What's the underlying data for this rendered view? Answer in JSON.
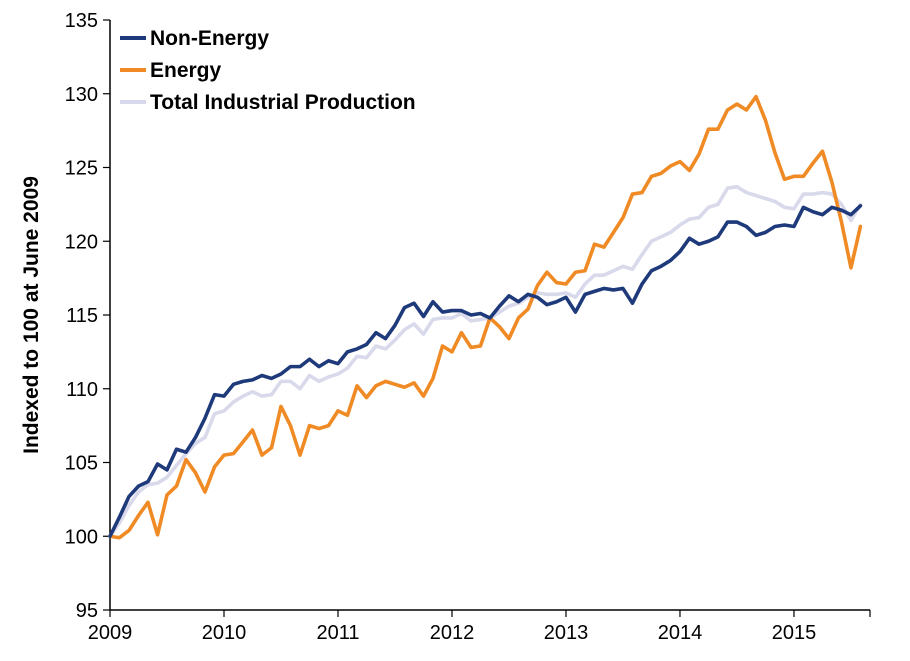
{
  "chart_data": {
    "type": "line",
    "title": "",
    "xlabel": "",
    "ylabel": "Indexed to 100 at June 2009",
    "ylim": [
      95,
      135
    ],
    "yticks": [
      95,
      100,
      105,
      110,
      115,
      120,
      125,
      130,
      135
    ],
    "xlim": [
      2009.0,
      2015.667
    ],
    "xticks": [
      "2009",
      "2010",
      "2011",
      "2012",
      "2013",
      "2014",
      "2015"
    ],
    "grid": false,
    "legend_position": "top-left",
    "series": [
      {
        "name": "Non-Energy",
        "color": "#1f3a7a",
        "points": [
          [
            2009.0,
            100.0
          ],
          [
            2009.083,
            101.3
          ],
          [
            2009.167,
            102.7
          ],
          [
            2009.25,
            103.4
          ],
          [
            2009.333,
            103.7
          ],
          [
            2009.417,
            104.9
          ],
          [
            2009.5,
            104.5
          ],
          [
            2009.583,
            105.9
          ],
          [
            2009.667,
            105.7
          ],
          [
            2009.75,
            106.7
          ],
          [
            2009.833,
            108.0
          ],
          [
            2009.917,
            109.6
          ],
          [
            2010.0,
            109.5
          ],
          [
            2010.083,
            110.3
          ],
          [
            2010.167,
            110.5
          ],
          [
            2010.25,
            110.6
          ],
          [
            2010.333,
            110.9
          ],
          [
            2010.417,
            110.7
          ],
          [
            2010.5,
            111.0
          ],
          [
            2010.583,
            111.5
          ],
          [
            2010.667,
            111.5
          ],
          [
            2010.75,
            112.0
          ],
          [
            2010.833,
            111.5
          ],
          [
            2010.917,
            111.9
          ],
          [
            2011.0,
            111.7
          ],
          [
            2011.083,
            112.5
          ],
          [
            2011.167,
            112.7
          ],
          [
            2011.25,
            113.0
          ],
          [
            2011.333,
            113.8
          ],
          [
            2011.417,
            113.4
          ],
          [
            2011.5,
            114.3
          ],
          [
            2011.583,
            115.5
          ],
          [
            2011.667,
            115.8
          ],
          [
            2011.75,
            114.9
          ],
          [
            2011.833,
            115.9
          ],
          [
            2011.917,
            115.2
          ],
          [
            2012.0,
            115.3
          ],
          [
            2012.083,
            115.3
          ],
          [
            2012.167,
            115.0
          ],
          [
            2012.25,
            115.1
          ],
          [
            2012.333,
            114.8
          ],
          [
            2012.417,
            115.6
          ],
          [
            2012.5,
            116.3
          ],
          [
            2012.583,
            115.9
          ],
          [
            2012.667,
            116.4
          ],
          [
            2012.75,
            116.2
          ],
          [
            2012.833,
            115.7
          ],
          [
            2012.917,
            115.9
          ],
          [
            2013.0,
            116.2
          ],
          [
            2013.083,
            115.2
          ],
          [
            2013.167,
            116.4
          ],
          [
            2013.25,
            116.6
          ],
          [
            2013.333,
            116.8
          ],
          [
            2013.417,
            116.7
          ],
          [
            2013.5,
            116.8
          ],
          [
            2013.583,
            115.8
          ],
          [
            2013.667,
            117.1
          ],
          [
            2013.75,
            118.0
          ],
          [
            2013.833,
            118.3
          ],
          [
            2013.917,
            118.7
          ],
          [
            2014.0,
            119.3
          ],
          [
            2014.083,
            120.2
          ],
          [
            2014.167,
            119.8
          ],
          [
            2014.25,
            120.0
          ],
          [
            2014.333,
            120.3
          ],
          [
            2014.417,
            121.3
          ],
          [
            2014.5,
            121.3
          ],
          [
            2014.583,
            121.0
          ],
          [
            2014.667,
            120.4
          ],
          [
            2014.75,
            120.6
          ],
          [
            2014.833,
            121.0
          ],
          [
            2014.917,
            121.1
          ],
          [
            2015.0,
            121.0
          ],
          [
            2015.083,
            122.3
          ],
          [
            2015.167,
            122.0
          ],
          [
            2015.25,
            121.8
          ],
          [
            2015.333,
            122.3
          ],
          [
            2015.417,
            122.1
          ],
          [
            2015.5,
            121.8
          ],
          [
            2015.583,
            122.4
          ]
        ]
      },
      {
        "name": "Energy",
        "color": "#f08a24",
        "points": [
          [
            2009.0,
            100.0
          ],
          [
            2009.083,
            99.9
          ],
          [
            2009.167,
            100.4
          ],
          [
            2009.25,
            101.4
          ],
          [
            2009.333,
            102.3
          ],
          [
            2009.417,
            100.1
          ],
          [
            2009.5,
            102.8
          ],
          [
            2009.583,
            103.4
          ],
          [
            2009.667,
            105.2
          ],
          [
            2009.75,
            104.3
          ],
          [
            2009.833,
            103.0
          ],
          [
            2009.917,
            104.7
          ],
          [
            2010.0,
            105.5
          ],
          [
            2010.083,
            105.6
          ],
          [
            2010.167,
            106.4
          ],
          [
            2010.25,
            107.2
          ],
          [
            2010.333,
            105.5
          ],
          [
            2010.417,
            106.0
          ],
          [
            2010.5,
            108.8
          ],
          [
            2010.583,
            107.5
          ],
          [
            2010.667,
            105.5
          ],
          [
            2010.75,
            107.5
          ],
          [
            2010.833,
            107.3
          ],
          [
            2010.917,
            107.5
          ],
          [
            2011.0,
            108.5
          ],
          [
            2011.083,
            108.2
          ],
          [
            2011.167,
            110.2
          ],
          [
            2011.25,
            109.4
          ],
          [
            2011.333,
            110.2
          ],
          [
            2011.417,
            110.5
          ],
          [
            2011.5,
            110.3
          ],
          [
            2011.583,
            110.1
          ],
          [
            2011.667,
            110.4
          ],
          [
            2011.75,
            109.5
          ],
          [
            2011.833,
            110.7
          ],
          [
            2011.917,
            112.9
          ],
          [
            2012.0,
            112.5
          ],
          [
            2012.083,
            113.8
          ],
          [
            2012.167,
            112.8
          ],
          [
            2012.25,
            112.9
          ],
          [
            2012.333,
            114.8
          ],
          [
            2012.417,
            114.2
          ],
          [
            2012.5,
            113.4
          ],
          [
            2012.583,
            114.8
          ],
          [
            2012.667,
            115.4
          ],
          [
            2012.75,
            117.0
          ],
          [
            2012.833,
            117.9
          ],
          [
            2012.917,
            117.2
          ],
          [
            2013.0,
            117.1
          ],
          [
            2013.083,
            117.9
          ],
          [
            2013.167,
            118.0
          ],
          [
            2013.25,
            119.8
          ],
          [
            2013.333,
            119.6
          ],
          [
            2013.417,
            120.6
          ],
          [
            2013.5,
            121.6
          ],
          [
            2013.583,
            123.2
          ],
          [
            2013.667,
            123.3
          ],
          [
            2013.75,
            124.4
          ],
          [
            2013.833,
            124.6
          ],
          [
            2013.917,
            125.1
          ],
          [
            2014.0,
            125.4
          ],
          [
            2014.083,
            124.8
          ],
          [
            2014.167,
            125.9
          ],
          [
            2014.25,
            127.6
          ],
          [
            2014.333,
            127.6
          ],
          [
            2014.417,
            128.9
          ],
          [
            2014.5,
            129.3
          ],
          [
            2014.583,
            128.9
          ],
          [
            2014.667,
            129.8
          ],
          [
            2014.75,
            128.2
          ],
          [
            2014.833,
            126.0
          ],
          [
            2014.917,
            124.2
          ],
          [
            2015.0,
            124.4
          ],
          [
            2015.083,
            124.4
          ],
          [
            2015.167,
            125.3
          ],
          [
            2015.25,
            126.1
          ],
          [
            2015.333,
            124.0
          ],
          [
            2015.417,
            121.3
          ],
          [
            2015.5,
            118.2
          ],
          [
            2015.583,
            121.0
          ]
        ]
      },
      {
        "name": "Total Industrial Production",
        "color": "#d9d9ec",
        "points": [
          [
            2009.0,
            100.0
          ],
          [
            2009.083,
            100.9
          ],
          [
            2009.167,
            102.1
          ],
          [
            2009.25,
            103.0
          ],
          [
            2009.333,
            103.5
          ],
          [
            2009.417,
            103.6
          ],
          [
            2009.5,
            104.0
          ],
          [
            2009.583,
            104.8
          ],
          [
            2009.667,
            105.6
          ],
          [
            2009.75,
            106.3
          ],
          [
            2009.833,
            106.7
          ],
          [
            2009.917,
            108.3
          ],
          [
            2010.0,
            108.5
          ],
          [
            2010.083,
            109.1
          ],
          [
            2010.167,
            109.5
          ],
          [
            2010.25,
            109.8
          ],
          [
            2010.333,
            109.5
          ],
          [
            2010.417,
            109.6
          ],
          [
            2010.5,
            110.5
          ],
          [
            2010.583,
            110.5
          ],
          [
            2010.667,
            110.0
          ],
          [
            2010.75,
            110.9
          ],
          [
            2010.833,
            110.5
          ],
          [
            2010.917,
            110.8
          ],
          [
            2011.0,
            111.0
          ],
          [
            2011.083,
            111.4
          ],
          [
            2011.167,
            112.2
          ],
          [
            2011.25,
            112.1
          ],
          [
            2011.333,
            112.9
          ],
          [
            2011.417,
            112.7
          ],
          [
            2011.5,
            113.3
          ],
          [
            2011.583,
            114.0
          ],
          [
            2011.667,
            114.4
          ],
          [
            2011.75,
            113.7
          ],
          [
            2011.833,
            114.7
          ],
          [
            2011.917,
            114.8
          ],
          [
            2012.0,
            114.8
          ],
          [
            2012.083,
            115.1
          ],
          [
            2012.167,
            114.6
          ],
          [
            2012.25,
            114.7
          ],
          [
            2012.333,
            114.8
          ],
          [
            2012.417,
            115.2
          ],
          [
            2012.5,
            115.6
          ],
          [
            2012.583,
            115.8
          ],
          [
            2012.667,
            116.2
          ],
          [
            2012.75,
            116.5
          ],
          [
            2012.833,
            116.4
          ],
          [
            2012.917,
            116.4
          ],
          [
            2013.0,
            116.5
          ],
          [
            2013.083,
            116.2
          ],
          [
            2013.167,
            117.1
          ],
          [
            2013.25,
            117.7
          ],
          [
            2013.333,
            117.7
          ],
          [
            2013.417,
            118.0
          ],
          [
            2013.5,
            118.3
          ],
          [
            2013.583,
            118.1
          ],
          [
            2013.667,
            119.1
          ],
          [
            2013.75,
            120.0
          ],
          [
            2013.833,
            120.3
          ],
          [
            2013.917,
            120.6
          ],
          [
            2014.0,
            121.1
          ],
          [
            2014.083,
            121.5
          ],
          [
            2014.167,
            121.6
          ],
          [
            2014.25,
            122.3
          ],
          [
            2014.333,
            122.5
          ],
          [
            2014.417,
            123.6
          ],
          [
            2014.5,
            123.7
          ],
          [
            2014.583,
            123.3
          ],
          [
            2014.667,
            123.1
          ],
          [
            2014.75,
            122.9
          ],
          [
            2014.833,
            122.7
          ],
          [
            2014.917,
            122.3
          ],
          [
            2015.0,
            122.2
          ],
          [
            2015.083,
            123.2
          ],
          [
            2015.167,
            123.2
          ],
          [
            2015.25,
            123.3
          ],
          [
            2015.333,
            123.2
          ],
          [
            2015.417,
            122.5
          ],
          [
            2015.5,
            121.4
          ],
          [
            2015.583,
            122.5
          ]
        ]
      }
    ]
  }
}
